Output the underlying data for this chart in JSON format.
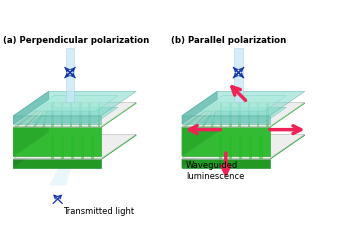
{
  "title_a": "(a) Perpendicular polarization",
  "title_b": "(b) Parallel polarization",
  "label_a": "Transmitted light",
  "label_b": "Waveguided\nluminescence",
  "bg_color": "#ffffff",
  "glass_face": "#80d8cc",
  "glass_edge_front": "#60c0b0",
  "glass_edge_left": "#50b0a0",
  "lsc_inner": "#90e8d8",
  "lsc_inner2": "#a0eed8",
  "green_top": "#44dd44",
  "green_stripe": "#22bb22",
  "green_dark": "#33cc33",
  "green_bot_top": "#33cc33",
  "green_bot_side": "#229922",
  "white_sep": "#dddddd",
  "red_arrow": "#ee2255",
  "blue_arrow": "#1133aa",
  "light_beam": "#c8e8f8",
  "beam_edge": "#99ccdd"
}
